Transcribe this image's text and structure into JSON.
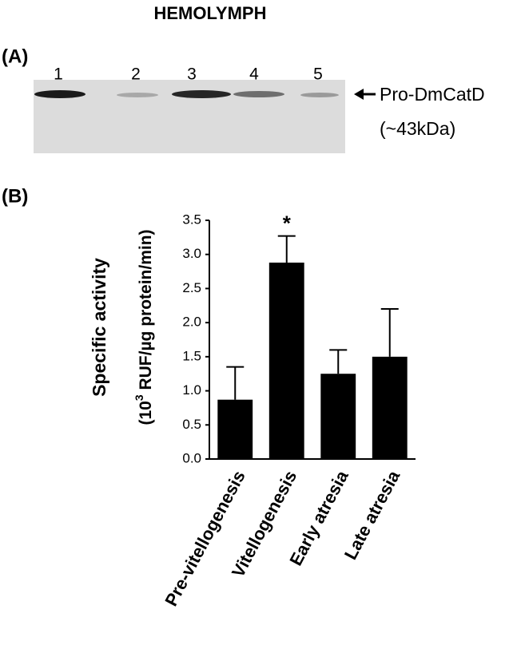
{
  "title": "HEMOLYMPH",
  "panel_a": {
    "label": "(A)",
    "lanes": [
      "1",
      "2",
      "3",
      "4",
      "5"
    ],
    "band_label": "Pro-DmCatD",
    "band_size": "(~43kDa)"
  },
  "panel_b": {
    "label": "(B)"
  },
  "chart_data": {
    "type": "bar",
    "ylabel": "Specific activity",
    "ylabel_unit": {
      "prefix": "(10",
      "superscript": "3",
      "suffix": " RUF/µg protein/min)"
    },
    "categories": [
      "Pre-vitellogenesis",
      "Vitellogenesis",
      "Early atresia",
      "Late atresia"
    ],
    "values": [
      0.87,
      2.88,
      1.25,
      1.5
    ],
    "errors": [
      0.48,
      0.39,
      0.35,
      0.7
    ],
    "annotations": [
      {
        "category": 1,
        "text": "*"
      }
    ],
    "color": "#000000",
    "ylim": [
      0,
      3.5
    ],
    "yticks": [
      {
        "value": 0,
        "label": "0.0"
      },
      0.5,
      {
        "value": 1,
        "label": "1.0"
      },
      1.5,
      {
        "value": 2,
        "label": "2.0"
      },
      2.5,
      {
        "value": 3,
        "label": "3.0"
      },
      3.5
    ],
    "grid": false
  }
}
